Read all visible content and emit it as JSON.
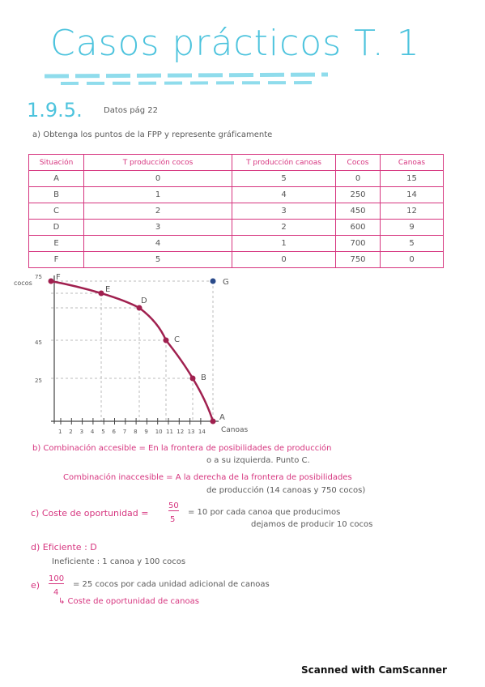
{
  "header": {
    "title": "Casos prácticos T. 1",
    "section": "1.9.5.",
    "source": "Datos pág 22"
  },
  "question_a": "a) Obtenga los puntos de la FPP y represente gráficamente",
  "table": {
    "headers": [
      "Situación",
      "T producción cocos",
      "T producción canoas",
      "Cocos",
      "Canoas"
    ],
    "rows": [
      [
        "A",
        "0",
        "5",
        "0",
        "15"
      ],
      [
        "B",
        "1",
        "4",
        "250",
        "14"
      ],
      [
        "C",
        "2",
        "3",
        "450",
        "12"
      ],
      [
        "D",
        "3",
        "2",
        "600",
        "9"
      ],
      [
        "E",
        "4",
        "1",
        "700",
        "5"
      ],
      [
        "F",
        "5",
        "0",
        "750",
        "0"
      ]
    ]
  },
  "graph": {
    "y_label": "cocos",
    "x_label": "Canoas",
    "y_ticks": [
      "75",
      "45",
      "25"
    ],
    "x_ticks": [
      "1",
      "2",
      "3",
      "4",
      "5",
      "6",
      "7",
      "8",
      "9",
      "10",
      "11",
      "12",
      "13",
      "14"
    ],
    "points": [
      "F",
      "E",
      "D",
      "C",
      "B",
      "A",
      "G"
    ]
  },
  "answers": {
    "b1": "b) Combinación accesible = En la frontera de posibilidades de producción",
    "b1_cont": "o a su izquierda. Punto C.",
    "b2": "Combinación inaccesible = A la derecha de la frontera de posibilidades",
    "b2_cont": "de producción (14 canoas y 750 cocos)",
    "c_label": "c) Coste de oportunidad =",
    "c_num": "50",
    "c_den": "5",
    "c_text": "= 10 por cada canoa que producimos",
    "c_cont": "dejamos de producir 10 cocos",
    "d1": "d) Eficiente : D",
    "d2": "Ineficiente : 1 canoa y 100 cocos",
    "e_label": "e)",
    "e_num": "100",
    "e_den": "4",
    "e_text": "= 25 cocos por cada unidad adicional de canoas",
    "e_cont": "↳ Coste de oportunidad de canoas"
  },
  "footer": "Scanned with CamScanner"
}
